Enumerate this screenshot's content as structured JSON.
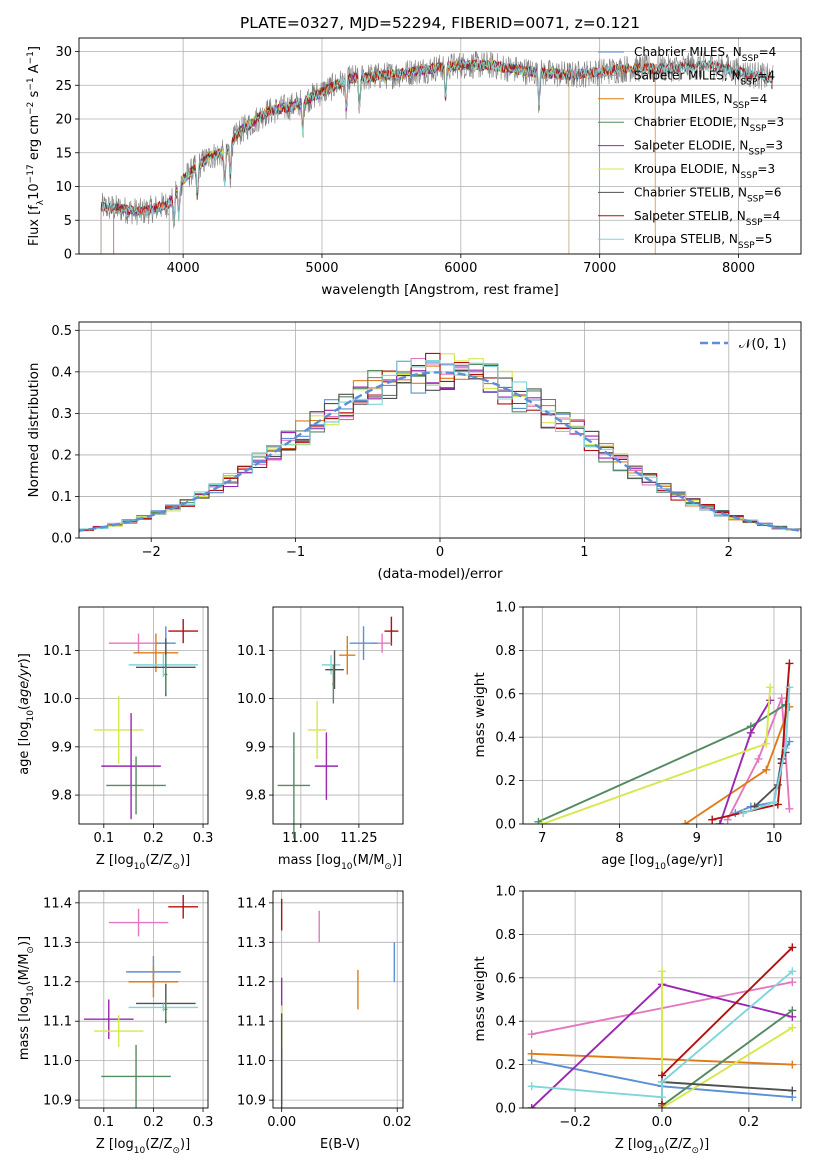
{
  "figure": {
    "title": "PLATE=0327, MJD=52294, FIBERID=0071, z=0.121"
  },
  "chart_data": [
    {
      "id": "spectrum",
      "type": "line",
      "xlabel": "wavelength [Angstrom, rest frame]",
      "ylabel_parts": [
        "Flux [f",
        "λ",
        "10",
        "−17",
        " erg cm",
        "−2",
        " s",
        "−1",
        " A",
        "−1",
        "]"
      ],
      "xlim": [
        3250,
        8450
      ],
      "ylim": [
        0,
        32
      ],
      "xticks": [
        4000,
        5000,
        6000,
        7000,
        8000
      ],
      "yticks": [
        0,
        5,
        10,
        15,
        20,
        25,
        30
      ],
      "grid": true,
      "legend_position": "top-right",
      "continuum_knots": {
        "x": [
          3410,
          3500,
          3600,
          3700,
          3800,
          3900,
          4000,
          4100,
          4200,
          4300,
          4400,
          4600,
          4800,
          5000,
          5200,
          5500,
          5800,
          6000,
          6200,
          6500,
          6800,
          7000,
          7200,
          7500,
          7800,
          8000,
          8250
        ],
        "y": [
          7,
          6.8,
          6.5,
          6.2,
          6.8,
          7.5,
          11,
          13,
          14.5,
          15,
          18,
          21,
          22,
          24,
          26,
          26.5,
          27.5,
          28,
          28,
          27,
          26.5,
          27,
          27.5,
          27.5,
          28,
          27,
          26
        ]
      },
      "model_start": {
        "Chabrier MILES": 3500,
        "Salpeter MILES": 3500,
        "Kroupa MILES": 3500,
        "Chabrier ELODIE": 3900,
        "Salpeter ELODIE": 3900,
        "Kroupa ELODIE": 3900,
        "Chabrier STELIB": 3410,
        "Salpeter STELIB": 3410,
        "Kroupa STELIB": 3410
      },
      "model_end": {
        "Chabrier MILES": 7000,
        "Salpeter MILES": 7000,
        "Kroupa MILES": 7400,
        "Chabrier ELODIE": 6780,
        "Salpeter ELODIE": 6780,
        "Kroupa ELODIE": 6780,
        "Chabrier STELIB": 8250,
        "Salpeter STELIB": 8250,
        "Kroupa STELIB": 8250
      },
      "legend": [
        {
          "base": "Chabrier MILES, N",
          "sub": "SSP",
          "tail": "=4",
          "color": "#5b8fd6"
        },
        {
          "base": "Salpeter MILES, N",
          "sub": "SSP",
          "tail": "=4",
          "color": "#e377c2"
        },
        {
          "base": "Kroupa MILES, N",
          "sub": "SSP",
          "tail": "=4",
          "color": "#e07b1a"
        },
        {
          "base": "Chabrier ELODIE, N",
          "sub": "SSP",
          "tail": "=3",
          "color": "#548a62"
        },
        {
          "base": "Salpeter ELODIE, N",
          "sub": "SSP",
          "tail": "=3",
          "color": "#9b27b0"
        },
        {
          "base": "Kroupa ELODIE, N",
          "sub": "SSP",
          "tail": "=3",
          "color": "#d6e84a"
        },
        {
          "base": "Chabrier STELIB, N",
          "sub": "SSP",
          "tail": "=6",
          "color": "#505050"
        },
        {
          "base": "Salpeter STELIB, N",
          "sub": "SSP",
          "tail": "=4",
          "color": "#b01010"
        },
        {
          "base": "Kroupa STELIB, N",
          "sub": "SSP",
          "tail": "=5",
          "color": "#7fd6d8"
        }
      ]
    },
    {
      "id": "residuals",
      "type": "histogram",
      "xlabel": "(data-model)/error",
      "ylabel": "Normed distribution",
      "xlim": [
        -2.5,
        2.5
      ],
      "ylim": [
        0,
        0.52
      ],
      "xticks": [
        -2,
        -1,
        0,
        1,
        2
      ],
      "yticks": [
        0.0,
        0.1,
        0.2,
        0.3,
        0.4,
        0.5
      ],
      "bin_width": 0.1,
      "grid": true,
      "legend_label": "𝒩(0, 1)",
      "legend_position": "top-right",
      "gaussian": {
        "mean": 0,
        "sigma": 1,
        "color": "#5b8fd6"
      }
    },
    {
      "id": "age_vs_Z",
      "type": "errorbar",
      "xlabel_parts": [
        "Z [log",
        "10",
        "(Z/Z",
        "⊙",
        ")]"
      ],
      "ylabel_parts": [
        "age  [log",
        "10",
        "(age/yr)]"
      ],
      "xlim": [
        0.05,
        0.31
      ],
      "ylim": [
        9.74,
        10.19
      ],
      "xticks": [
        0.1,
        0.2,
        0.3
      ],
      "yticks": [
        9.8,
        9.9,
        10.0,
        10.1
      ],
      "points": [
        {
          "model": "Salpeter STELIB",
          "x": 0.26,
          "xerr": 0.03,
          "y": 10.14,
          "yerr": 0.025,
          "color": "#b01010"
        },
        {
          "model": "Salpeter MILES",
          "x": 0.17,
          "xerr": 0.06,
          "y": 10.115,
          "yerr": 0.02,
          "color": "#e377c2"
        },
        {
          "model": "Chabrier MILES",
          "x": 0.225,
          "xerr": 0.02,
          "y": 10.115,
          "yerr": 0.035,
          "color": "#5b8fd6"
        },
        {
          "model": "Kroupa MILES",
          "x": 0.205,
          "xerr": 0.045,
          "y": 10.095,
          "yerr": 0.04,
          "color": "#e07b1a"
        },
        {
          "model": "Kroupa STELIB",
          "x": 0.22,
          "xerr": 0.07,
          "y": 10.07,
          "yerr": 0.025,
          "color": "#7fd6d8"
        },
        {
          "model": "Chabrier STELIB",
          "x": 0.225,
          "xerr": 0.06,
          "y": 10.065,
          "yerr": 0.06,
          "color": "#505050"
        },
        {
          "model": "Chabrier ELODIE",
          "x": 0.225,
          "xerr": 0.003,
          "y": 10.05,
          "yerr": 0.04,
          "color": "#548a62"
        },
        {
          "model": "Kroupa ELODIE",
          "x": 0.13,
          "xerr": 0.05,
          "y": 9.935,
          "yerr": 0.07,
          "color": "#d6e84a"
        },
        {
          "model": "Salpeter ELODIE",
          "x": 0.155,
          "xerr": 0.06,
          "y": 9.86,
          "yerr": 0.11,
          "color": "#9b27b0"
        },
        {
          "model": "Chabrier ELODIE 2",
          "x": 0.165,
          "xerr": 0.06,
          "y": 9.82,
          "yerr": 0.06,
          "color": "#548a62"
        }
      ]
    },
    {
      "id": "age_vs_mass",
      "type": "errorbar",
      "xlabel_parts": [
        "mass [log",
        "10",
        "(M/M",
        "⊙",
        ")]"
      ],
      "xlim": [
        10.88,
        11.44
      ],
      "ylim": [
        9.74,
        10.19
      ],
      "xticks": [
        11.0,
        11.25
      ],
      "xtick_labels": [
        "11.00",
        "11.25"
      ],
      "yticks": [
        9.8,
        9.9,
        10.0,
        10.1
      ],
      "points": [
        {
          "x": 11.39,
          "xerr": 0.03,
          "y": 10.14,
          "yerr": 0.03,
          "color": "#b01010"
        },
        {
          "x": 11.35,
          "xerr": 0.04,
          "y": 10.115,
          "yerr": 0.02,
          "color": "#e377c2"
        },
        {
          "x": 11.27,
          "xerr": 0.06,
          "y": 10.115,
          "yerr": 0.035,
          "color": "#5b8fd6"
        },
        {
          "x": 11.2,
          "xerr": 0.035,
          "y": 10.09,
          "yerr": 0.04,
          "color": "#e07b1a"
        },
        {
          "x": 11.13,
          "xerr": 0.04,
          "y": 10.07,
          "yerr": 0.02,
          "color": "#7fd6d8"
        },
        {
          "x": 11.145,
          "xerr": 0.04,
          "y": 10.06,
          "yerr": 0.04,
          "color": "#505050"
        },
        {
          "x": 11.14,
          "xerr": 0.005,
          "y": 10.03,
          "yerr": 0.04,
          "color": "#548a62"
        },
        {
          "x": 11.07,
          "xerr": 0.04,
          "y": 9.935,
          "yerr": 0.06,
          "color": "#d6e84a"
        },
        {
          "x": 11.11,
          "xerr": 0.05,
          "y": 9.86,
          "yerr": 0.07,
          "color": "#9b27b0"
        },
        {
          "x": 10.97,
          "xerr": 0.07,
          "y": 9.82,
          "yerr": 0.11,
          "color": "#548a62"
        }
      ]
    },
    {
      "id": "weight_vs_age",
      "type": "line",
      "xlabel_parts": [
        "age  [log",
        "10",
        "(age/yr)]"
      ],
      "ylabel": "mass weight",
      "xlim": [
        6.75,
        10.35
      ],
      "ylim": [
        0,
        1.0
      ],
      "xticks": [
        7,
        8,
        9,
        10
      ],
      "yticks": [
        0.0,
        0.2,
        0.4,
        0.6,
        0.8,
        1.0
      ],
      "series": [
        {
          "model": "Chabrier MILES",
          "color": "#5b8fd6",
          "x": [
            9.5,
            9.7,
            10.0,
            10.1,
            10.2
          ],
          "y": [
            0.05,
            0.08,
            0.1,
            0.3,
            0.38
          ]
        },
        {
          "model": "Salpeter MILES",
          "color": "#e377c2",
          "x": [
            9.4,
            9.8,
            10.1,
            10.2
          ],
          "y": [
            0.02,
            0.3,
            0.58,
            0.07
          ]
        },
        {
          "model": "Kroupa MILES",
          "color": "#e07b1a",
          "x": [
            8.85,
            9.9,
            10.2
          ],
          "y": [
            0.0,
            0.25,
            0.54
          ]
        },
        {
          "model": "Chabrier ELODIE",
          "color": "#548a62",
          "x": [
            6.95,
            9.7,
            10.15
          ],
          "y": [
            0.01,
            0.45,
            0.55
          ]
        },
        {
          "model": "Salpeter ELODIE",
          "color": "#9b27b0",
          "x": [
            9.3,
            9.7,
            9.95
          ],
          "y": [
            0.0,
            0.42,
            0.57
          ]
        },
        {
          "model": "Kroupa ELODIE",
          "color": "#d6e84a",
          "x": [
            7.0,
            9.9,
            9.95
          ],
          "y": [
            0.0,
            0.37,
            0.63
          ]
        },
        {
          "model": "Chabrier STELIB",
          "color": "#505050",
          "x": [
            9.75,
            10.05,
            10.1,
            10.15
          ],
          "y": [
            0.08,
            0.18,
            0.3,
            0.33
          ]
        },
        {
          "model": "Salpeter STELIB",
          "color": "#b01010",
          "x": [
            9.2,
            10.05,
            10.1,
            10.2
          ],
          "y": [
            0.02,
            0.09,
            0.28,
            0.74
          ]
        },
        {
          "model": "Kroupa STELIB",
          "color": "#7fd6d8",
          "x": [
            9.6,
            10.0,
            10.15,
            10.2
          ],
          "y": [
            0.05,
            0.1,
            0.35,
            0.63
          ]
        }
      ]
    },
    {
      "id": "mass_vs_Z",
      "type": "errorbar",
      "xlabel_parts": [
        "Z [log",
        "10",
        "(Z/Z",
        "⊙",
        ")]"
      ],
      "ylabel_parts": [
        "mass [log",
        "10",
        "(M/M",
        "⊙",
        ")]"
      ],
      "xlim": [
        0.05,
        0.31
      ],
      "ylim": [
        10.88,
        11.43
      ],
      "xticks": [
        0.1,
        0.2,
        0.3
      ],
      "yticks": [
        10.9,
        11.0,
        11.1,
        11.2,
        11.3,
        11.4
      ],
      "points": [
        {
          "x": 0.26,
          "xerr": 0.03,
          "y": 11.39,
          "yerr": 0.03,
          "color": "#b01010"
        },
        {
          "x": 0.17,
          "xerr": 0.06,
          "y": 11.35,
          "yerr": 0.035,
          "color": "#e377c2"
        },
        {
          "x": 0.2,
          "xerr": 0.055,
          "y": 11.225,
          "yerr": 0.04,
          "color": "#5b8fd6"
        },
        {
          "x": 0.2,
          "xerr": 0.05,
          "y": 11.2,
          "yerr": 0.04,
          "color": "#e07b1a"
        },
        {
          "x": 0.225,
          "xerr": 0.06,
          "y": 11.145,
          "yerr": 0.05,
          "color": "#505050"
        },
        {
          "x": 0.22,
          "xerr": 0.07,
          "y": 11.135,
          "yerr": 0.01,
          "color": "#7fd6d8"
        },
        {
          "x": 0.225,
          "xerr": 0.003,
          "y": 11.13,
          "yerr": 0.025,
          "color": "#548a62"
        },
        {
          "x": 0.11,
          "xerr": 0.05,
          "y": 11.105,
          "yerr": 0.05,
          "color": "#9b27b0"
        },
        {
          "x": 0.13,
          "xerr": 0.05,
          "y": 11.075,
          "yerr": 0.04,
          "color": "#d6e84a"
        },
        {
          "x": 0.165,
          "xerr": 0.07,
          "y": 10.96,
          "yerr": 0.08,
          "color": "#548a62"
        }
      ]
    },
    {
      "id": "mass_vs_ebv",
      "type": "errorbar",
      "xlabel": "E(B-V)",
      "xlim": [
        -0.0015,
        0.021
      ],
      "ylim": [
        10.88,
        11.43
      ],
      "xticks": [
        0.0,
        0.02
      ],
      "xtick_labels": [
        "0.00",
        "0.02"
      ],
      "yticks": [
        10.9,
        11.0,
        11.1,
        11.2,
        11.3,
        11.4
      ],
      "points": [
        {
          "x": 0.0,
          "y": 11.37,
          "yerr": 0.04,
          "color": "#b01010"
        },
        {
          "x": 0.0065,
          "y": 11.34,
          "yerr": 0.04,
          "color": "#e377c2"
        },
        {
          "x": 0.0195,
          "y": 11.25,
          "yerr": 0.05,
          "color": "#5b8fd6"
        },
        {
          "x": 0.0132,
          "y": 11.18,
          "yerr": 0.05,
          "color": "#e07b1a"
        },
        {
          "x": 0.0,
          "y": 11.13,
          "yerr": 0.08,
          "color": "#9b27b0"
        },
        {
          "x": 0.0,
          "y": 11.08,
          "yerr": 0.06,
          "color": "#d6e84a"
        },
        {
          "x": 0.0,
          "y": 10.96,
          "yerr": 0.07,
          "color": "#548a62"
        },
        {
          "x": 0.0,
          "y": 11.0,
          "yerr": 0.12,
          "color": "#505050"
        }
      ]
    },
    {
      "id": "weight_vs_Z",
      "type": "line",
      "xlabel_parts": [
        "Z [log",
        "10",
        "(Z/Z",
        "⊙",
        ")]"
      ],
      "ylabel": "mass weight",
      "xlim": [
        -0.32,
        0.32
      ],
      "ylim": [
        0,
        1.0
      ],
      "xticks": [
        -0.2,
        0.0,
        0.2
      ],
      "xtick_labels": [
        "−0.2",
        "0.0",
        "0.2"
      ],
      "yticks": [
        0.0,
        0.2,
        0.4,
        0.6,
        0.8,
        1.0
      ],
      "series": [
        {
          "model": "Chabrier MILES",
          "color": "#5b8fd6",
          "x": [
            -0.3,
            0.0,
            0.3
          ],
          "y": [
            0.22,
            0.1,
            0.05
          ]
        },
        {
          "model": "Salpeter MILES",
          "color": "#e377c2",
          "x": [
            -0.3,
            0.3
          ],
          "y": [
            0.34,
            0.58
          ]
        },
        {
          "model": "Kroupa MILES",
          "color": "#e07b1a",
          "x": [
            -0.3,
            0.3
          ],
          "y": [
            0.25,
            0.2
          ]
        },
        {
          "model": "Chabrier ELODIE",
          "color": "#548a62",
          "x": [
            0.0,
            0.3
          ],
          "y": [
            0.01,
            0.45
          ]
        },
        {
          "model": "Salpeter ELODIE",
          "color": "#9b27b0",
          "x": [
            -0.3,
            0.0,
            0.3
          ],
          "y": [
            0.0,
            0.57,
            0.42
          ]
        },
        {
          "model": "Kroupa ELODIE",
          "color": "#d6e84a",
          "x": [
            0.0,
            0.0,
            0.3
          ],
          "y": [
            0.63,
            0.0,
            0.37
          ]
        },
        {
          "model": "Chabrier STELIB",
          "color": "#505050",
          "x": [
            0.0,
            0.3
          ],
          "y": [
            0.12,
            0.08
          ]
        },
        {
          "model": "Salpeter STELIB",
          "color": "#b01010",
          "x": [
            0.0,
            0.0,
            0.3
          ],
          "y": [
            0.02,
            0.15,
            0.74
          ]
        },
        {
          "model": "Kroupa STELIB",
          "color": "#7fd6d8",
          "x": [
            -0.3,
            0.0,
            0.0,
            0.3
          ],
          "y": [
            0.1,
            0.05,
            0.12,
            0.63
          ]
        }
      ]
    }
  ]
}
